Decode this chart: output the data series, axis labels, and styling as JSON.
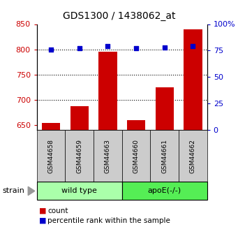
{
  "title": "GDS1300 / 1438062_at",
  "samples": [
    "GSM44658",
    "GSM44659",
    "GSM44663",
    "GSM44660",
    "GSM44661",
    "GSM44662"
  ],
  "counts": [
    654,
    687,
    796,
    660,
    725,
    840
  ],
  "percentiles": [
    76,
    77,
    79,
    77,
    78,
    79
  ],
  "ylim_left": [
    640,
    850
  ],
  "yticks_left": [
    650,
    700,
    750,
    800,
    850
  ],
  "ylim_right": [
    0,
    100
  ],
  "yticks_right": [
    0,
    25,
    50,
    75,
    100
  ],
  "ytick_labels_right": [
    "0",
    "25",
    "50",
    "75",
    "100%"
  ],
  "group_wild_label": "wild type",
  "group_apoe_label": "apoE(-/-)",
  "group_wild_color": "#aaffaa",
  "group_apoe_color": "#55ee55",
  "bar_color": "#cc0000",
  "scatter_color": "#0000cc",
  "bar_width": 0.65,
  "bg_color": "#ffffff",
  "tick_color_left": "#cc0000",
  "tick_color_right": "#0000cc",
  "strain_label": "strain",
  "legend_count_label": "count",
  "legend_percentile_label": "percentile rank within the sample",
  "sample_box_color": "#cccccc",
  "dotted_yvals": [
    700,
    750,
    800
  ]
}
